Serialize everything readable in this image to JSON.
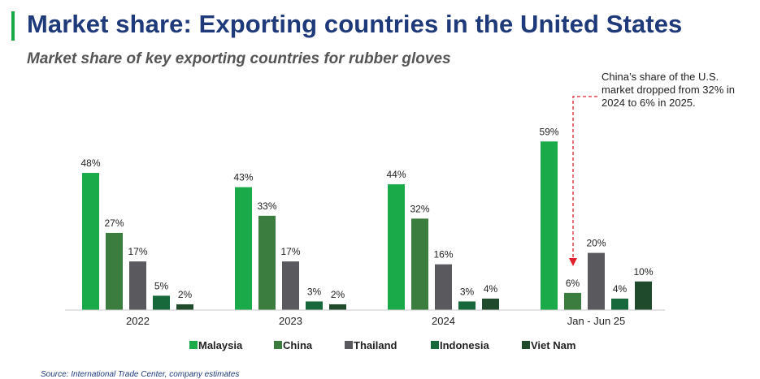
{
  "header": {
    "title": "Market share: Exporting countries in the United States",
    "subtitle": "Market share of key exporting countries for rubber gloves"
  },
  "annotation": {
    "text": "China’s share of the U.S. market dropped from 32% in 2024 to 6% in 2025."
  },
  "source": "Source: International Trade Center, company estimates",
  "colors": {
    "title": "#1f3a7a",
    "accent": "#1aaa4a",
    "annotation_arrow": "#e0202a"
  },
  "chart_data": {
    "type": "bar",
    "categories": [
      "2022",
      "2023",
      "2024",
      "Jan - Jun 25"
    ],
    "series": [
      {
        "name": "Malaysia",
        "values": [
          48,
          43,
          44,
          59
        ],
        "color": "#1aaa4a"
      },
      {
        "name": "China",
        "values": [
          27,
          33,
          32,
          6
        ],
        "color": "#3a7d3e"
      },
      {
        "name": "Thailand",
        "values": [
          17,
          17,
          16,
          20
        ],
        "color": "#5a5a5e"
      },
      {
        "name": "Indonesia",
        "values": [
          5,
          3,
          3,
          4
        ],
        "color": "#17683a"
      },
      {
        "name": "Viet Nam",
        "values": [
          2,
          2,
          4,
          10
        ],
        "color": "#1f4a2c"
      }
    ],
    "value_suffix": "%",
    "ylim": [
      0,
      60
    ],
    "grid": false,
    "legend_position": "bottom"
  }
}
